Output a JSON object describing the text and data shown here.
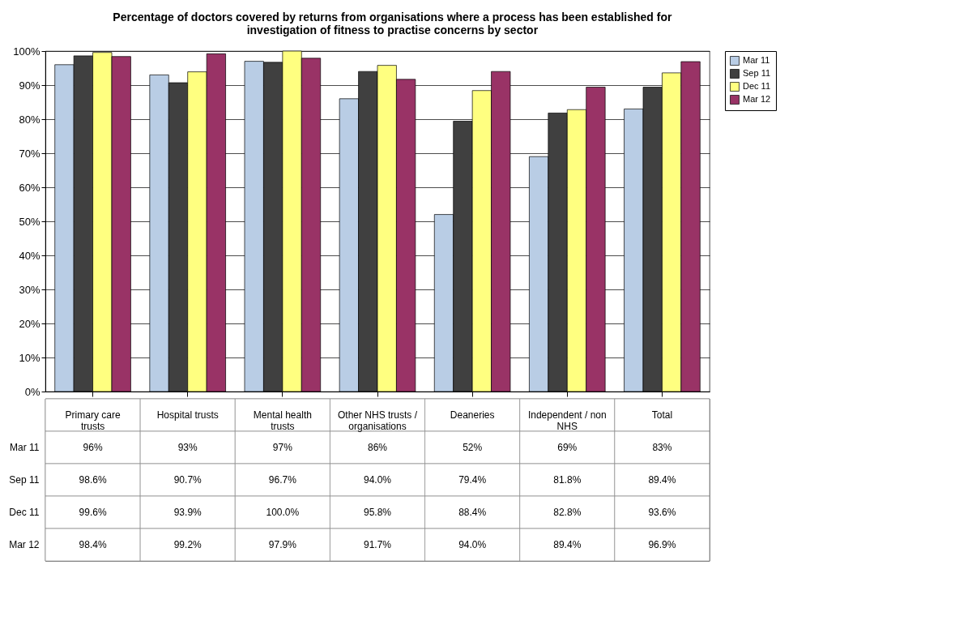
{
  "chart_data": {
    "type": "bar",
    "title": "Percentage of doctors covered by returns from organisations where a process has been established for investigation of fitness to practise concerns by sector",
    "categories": [
      "Primary care trusts",
      "Hospital trusts",
      "Mental health trusts",
      "Other NHS trusts / organisations",
      "Deaneries",
      "Independent / non NHS",
      "Total"
    ],
    "series": [
      {
        "name": "Mar 11",
        "color": "#b9cde5",
        "values": [
          96,
          93,
          97,
          86,
          52,
          69,
          83
        ],
        "value_labels": [
          "96%",
          "93%",
          "97%",
          "86%",
          "52%",
          "69%",
          "83%"
        ]
      },
      {
        "name": "Sep 11",
        "color": "#404040",
        "values": [
          98.6,
          90.7,
          96.7,
          94.0,
          79.4,
          81.8,
          89.4
        ],
        "value_labels": [
          "98.6%",
          "90.7%",
          "96.7%",
          "94.0%",
          "79.4%",
          "81.8%",
          "89.4%"
        ]
      },
      {
        "name": "Dec 11",
        "color": "#ffff80",
        "values": [
          99.6,
          93.9,
          100.0,
          95.8,
          88.4,
          82.8,
          93.6
        ],
        "value_labels": [
          "99.6%",
          "93.9%",
          "100.0%",
          "95.8%",
          "88.4%",
          "82.8%",
          "93.6%"
        ]
      },
      {
        "name": "Mar 12",
        "color": "#993366",
        "values": [
          98.4,
          99.2,
          97.9,
          91.7,
          94.0,
          89.4,
          96.9
        ],
        "value_labels": [
          "98.4%",
          "99.2%",
          "97.9%",
          "91.7%",
          "94.0%",
          "89.4%",
          "96.9%"
        ]
      }
    ],
    "ylim": [
      0,
      100
    ],
    "yticks": [
      {
        "value": 0,
        "label": "0%"
      },
      {
        "value": 10,
        "label": "10%"
      },
      {
        "value": 20,
        "label": "20%"
      },
      {
        "value": 30,
        "label": "30%"
      },
      {
        "value": 40,
        "label": "40%"
      },
      {
        "value": 50,
        "label": "50%"
      },
      {
        "value": 60,
        "label": "60%"
      },
      {
        "value": 70,
        "label": "70%"
      },
      {
        "value": 80,
        "label": "80%"
      },
      {
        "value": 90,
        "label": "90%"
      },
      {
        "value": 100,
        "label": "100%"
      }
    ],
    "grid": "y",
    "legend": "right"
  }
}
